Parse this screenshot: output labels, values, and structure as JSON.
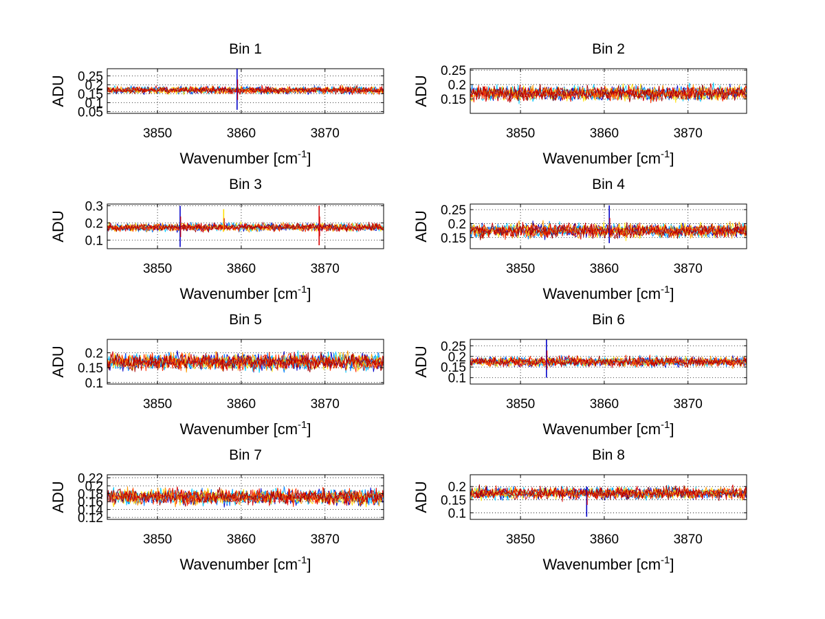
{
  "figure": {
    "background": "#ffffff"
  },
  "chart_data": [
    {
      "type": "line",
      "title": "Bin 1",
      "xlabel": "Wavenumber [cm",
      "xlabel_sup": "-1",
      "xlabel_tail": "]",
      "ylabel": "ADU",
      "xlim": [
        3844,
        3877
      ],
      "ylim": [
        0.04,
        0.29
      ],
      "xticks": [
        3850,
        3860,
        3870
      ],
      "yticks": [
        0.05,
        0.1,
        0.15,
        0.2,
        0.25
      ],
      "ytick_labels": [
        "0.05",
        "0.1",
        "0.15",
        "0.2",
        "0.25"
      ],
      "grid": true,
      "band_center": 0.17,
      "band_halfwidth": 0.035,
      "spikes": [
        {
          "x": 3859.5,
          "min": 0.06,
          "max": 0.29
        }
      ]
    },
    {
      "type": "line",
      "title": "Bin 2",
      "xlabel": "Wavenumber [cm",
      "xlabel_sup": "-1",
      "xlabel_tail": "]",
      "ylabel": "ADU",
      "xlim": [
        3844,
        3877
      ],
      "ylim": [
        0.1,
        0.255
      ],
      "xticks": [
        3850,
        3860,
        3870
      ],
      "yticks": [
        0.15,
        0.2,
        0.25
      ],
      "ytick_labels": [
        "0.15",
        "0.2",
        "0.25"
      ],
      "grid": true,
      "band_center": 0.17,
      "band_halfwidth": 0.045,
      "spikes": []
    },
    {
      "type": "line",
      "title": "Bin 3",
      "xlabel": "Wavenumber [cm",
      "xlabel_sup": "-1",
      "xlabel_tail": "]",
      "ylabel": "ADU",
      "xlim": [
        3844,
        3877
      ],
      "ylim": [
        0.05,
        0.31
      ],
      "xticks": [
        3850,
        3860,
        3870
      ],
      "yticks": [
        0.1,
        0.2,
        0.3
      ],
      "ytick_labels": [
        "0.1",
        "0.2",
        "0.3"
      ],
      "grid": true,
      "band_center": 0.175,
      "band_halfwidth": 0.04,
      "spikes": [
        {
          "x": 3852.7,
          "min": 0.06,
          "max": 0.3
        },
        {
          "x": 3857.9,
          "min": 0.15,
          "max": 0.28
        },
        {
          "x": 3869.3,
          "min": 0.07,
          "max": 0.3
        }
      ]
    },
    {
      "type": "line",
      "title": "Bin 4",
      "xlabel": "Wavenumber [cm",
      "xlabel_sup": "-1",
      "xlabel_tail": "]",
      "ylabel": "ADU",
      "xlim": [
        3844,
        3877
      ],
      "ylim": [
        0.11,
        0.27
      ],
      "xticks": [
        3850,
        3860,
        3870
      ],
      "yticks": [
        0.15,
        0.2,
        0.25
      ],
      "ytick_labels": [
        "0.15",
        "0.2",
        "0.25"
      ],
      "grid": true,
      "band_center": 0.175,
      "band_halfwidth": 0.045,
      "spikes": [
        {
          "x": 3860.6,
          "min": 0.13,
          "max": 0.265
        }
      ]
    },
    {
      "type": "line",
      "title": "Bin 5",
      "xlabel": "Wavenumber [cm",
      "xlabel_sup": "-1",
      "xlabel_tail": "]",
      "ylabel": "ADU",
      "xlim": [
        3844,
        3877
      ],
      "ylim": [
        0.095,
        0.245
      ],
      "xticks": [
        3850,
        3860,
        3870
      ],
      "yticks": [
        0.1,
        0.15,
        0.2
      ],
      "ytick_labels": [
        "0.1",
        "0.15",
        "0.2"
      ],
      "grid": true,
      "band_center": 0.17,
      "band_halfwidth": 0.05,
      "spikes": []
    },
    {
      "type": "line",
      "title": "Bin 6",
      "xlabel": "Wavenumber [cm",
      "xlabel_sup": "-1",
      "xlabel_tail": "]",
      "ylabel": "ADU",
      "xlim": [
        3844,
        3877
      ],
      "ylim": [
        0.07,
        0.28
      ],
      "xticks": [
        3850,
        3860,
        3870
      ],
      "yticks": [
        0.1,
        0.15,
        0.2,
        0.25
      ],
      "ytick_labels": [
        "0.1",
        "0.15",
        "0.2",
        "0.25"
      ],
      "grid": true,
      "band_center": 0.175,
      "band_halfwidth": 0.04,
      "spikes": [
        {
          "x": 3853.1,
          "min": 0.1,
          "max": 0.28
        }
      ]
    },
    {
      "type": "line",
      "title": "Bin 7",
      "xlabel": "Wavenumber [cm",
      "xlabel_sup": "-1",
      "xlabel_tail": "]",
      "ylabel": "ADU",
      "xlim": [
        3844,
        3877
      ],
      "ylim": [
        0.115,
        0.228
      ],
      "xticks": [
        3850,
        3860,
        3870
      ],
      "yticks": [
        0.12,
        0.14,
        0.16,
        0.18,
        0.2,
        0.22
      ],
      "ytick_labels": [
        "0.12",
        "0.14",
        "0.16",
        "0.18",
        "0.2",
        "0.22"
      ],
      "grid": true,
      "band_center": 0.172,
      "band_halfwidth": 0.035,
      "spikes": []
    },
    {
      "type": "line",
      "title": "Bin 8",
      "xlabel": "Wavenumber [cm",
      "xlabel_sup": "-1",
      "xlabel_tail": "]",
      "ylabel": "ADU",
      "xlim": [
        3844,
        3877
      ],
      "ylim": [
        0.075,
        0.245
      ],
      "xticks": [
        3850,
        3860,
        3870
      ],
      "yticks": [
        0.1,
        0.15,
        0.2
      ],
      "ytick_labels": [
        "0.1",
        "0.15",
        "0.2"
      ],
      "grid": true,
      "band_center": 0.175,
      "band_halfwidth": 0.04,
      "spikes": [
        {
          "x": 3857.9,
          "min": 0.085,
          "max": 0.2
        }
      ]
    }
  ],
  "series_colors": [
    "#0000c8",
    "#0080ff",
    "#00c8ff",
    "#ffe000",
    "#ff9800",
    "#ff3000",
    "#d80000",
    "#a00000"
  ]
}
